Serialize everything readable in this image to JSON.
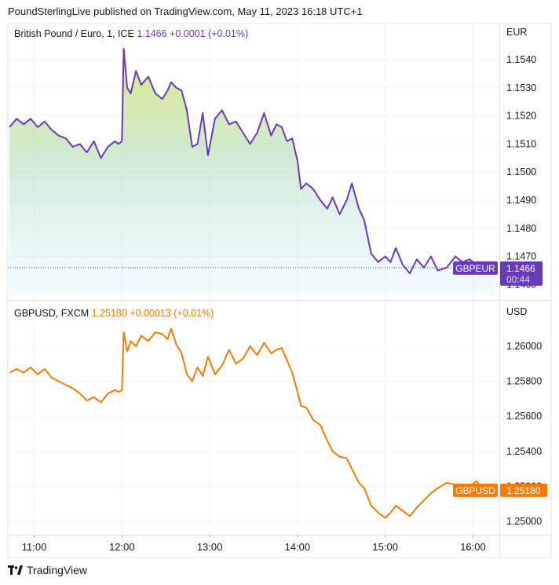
{
  "header": {
    "text": "PoundSterlingLive published on TradingView.com, May 11, 2023 16:18 UTC+1"
  },
  "footer": {
    "brand": "TradingView"
  },
  "colors": {
    "eur_line": "#673ab7",
    "usd_line": "#f57c00",
    "grid": "#f0f3fa",
    "border": "#e0e3eb",
    "text": "#131722"
  },
  "chart_data": [
    {
      "type": "area",
      "symbol": "British Pound / Euro, 1, ICE",
      "last": "1.1466",
      "change": "+0.0001 (+0.01%)",
      "currency": "EUR",
      "price_label": "GBPEUR",
      "price_value": "1.1466",
      "countdown": "00:44",
      "ylim": [
        1.146,
        1.155
      ],
      "yticks": [
        "1.1540",
        "1.1530",
        "1.1520",
        "1.1510",
        "1.1500",
        "1.1490",
        "1.1480",
        "1.1470",
        "1.1460"
      ],
      "xlim": [
        10.7,
        16.3
      ],
      "series": [
        {
          "x": [
            10.72,
            10.8,
            10.88,
            10.96,
            11.04,
            11.12,
            11.2,
            11.28,
            11.36,
            11.44,
            11.52,
            11.6,
            11.68,
            11.76,
            11.84,
            11.92,
            11.96,
            12.0,
            12.02,
            12.06,
            12.1,
            12.16,
            12.22,
            12.3,
            12.38,
            12.46,
            12.52,
            12.56,
            12.62,
            12.68,
            12.74,
            12.8,
            12.86,
            12.92,
            12.98,
            13.06,
            13.14,
            13.22,
            13.3,
            13.38,
            13.46,
            13.54,
            13.62,
            13.7,
            13.76,
            13.82,
            13.88,
            13.94,
            14.0,
            14.04,
            14.1,
            14.18,
            14.26,
            14.34,
            14.4,
            14.48,
            14.56,
            14.62,
            14.7,
            14.76,
            14.84,
            14.92,
            15.0,
            15.06,
            15.12,
            15.2,
            15.28,
            15.36,
            15.44,
            15.52,
            15.6,
            15.7,
            15.8,
            15.88,
            15.96,
            16.04,
            16.12,
            16.2,
            16.25
          ],
          "y": [
            1.1516,
            1.1519,
            1.1517,
            1.1519,
            1.1516,
            1.1518,
            1.1515,
            1.1513,
            1.1512,
            1.1509,
            1.151,
            1.1507,
            1.1511,
            1.1505,
            1.1509,
            1.1511,
            1.151,
            1.1511,
            1.1544,
            1.153,
            1.1528,
            1.1536,
            1.1531,
            1.1534,
            1.1528,
            1.1526,
            1.1529,
            1.1532,
            1.153,
            1.1529,
            1.1522,
            1.1509,
            1.151,
            1.1521,
            1.1506,
            1.1519,
            1.1522,
            1.1517,
            1.1518,
            1.1514,
            1.151,
            1.1514,
            1.1521,
            1.1513,
            1.1517,
            1.1516,
            1.1511,
            1.1512,
            1.1504,
            1.1494,
            1.1496,
            1.1494,
            1.149,
            1.1487,
            1.1491,
            1.1485,
            1.149,
            1.1496,
            1.1487,
            1.1483,
            1.1471,
            1.1468,
            1.147,
            1.1468,
            1.1473,
            1.1467,
            1.1464,
            1.1469,
            1.1466,
            1.147,
            1.1465,
            1.1466,
            1.147,
            1.1468,
            1.1469,
            1.1467,
            1.1468,
            1.1465,
            1.1466
          ]
        }
      ]
    },
    {
      "type": "line",
      "symbol": "GBPUSD, FXCM",
      "last": "1.25180",
      "change": "+0.00013 (+0.01%)",
      "currency": "USD",
      "price_label": "GBPUSD",
      "price_value": "1.25180",
      "ylim": [
        1.2495,
        1.261
      ],
      "yticks": [
        "1.26000",
        "1.25800",
        "1.25600",
        "1.25400",
        "1.25200",
        "1.25000"
      ],
      "xlim": [
        10.7,
        16.3
      ],
      "xticks": [
        "11:00",
        "12:00",
        "13:00",
        "14:00",
        "15:00",
        "16:00"
      ],
      "xtick_values": [
        11,
        12,
        13,
        14,
        15,
        16
      ],
      "series": [
        {
          "x": [
            10.72,
            10.8,
            10.88,
            10.96,
            11.04,
            11.12,
            11.2,
            11.28,
            11.36,
            11.44,
            11.52,
            11.6,
            11.68,
            11.76,
            11.84,
            11.92,
            11.96,
            12.0,
            12.02,
            12.06,
            12.1,
            12.16,
            12.22,
            12.3,
            12.38,
            12.46,
            12.52,
            12.56,
            12.62,
            12.68,
            12.74,
            12.8,
            12.86,
            12.92,
            12.98,
            13.06,
            13.14,
            13.22,
            13.3,
            13.38,
            13.46,
            13.54,
            13.62,
            13.7,
            13.76,
            13.82,
            13.88,
            13.94,
            14.0,
            14.04,
            14.1,
            14.18,
            14.26,
            14.34,
            14.4,
            14.48,
            14.56,
            14.62,
            14.7,
            14.76,
            14.84,
            14.92,
            15.0,
            15.06,
            15.12,
            15.2,
            15.28,
            15.36,
            15.44,
            15.52,
            15.6,
            15.7,
            15.8,
            15.88,
            15.96,
            16.04,
            16.12,
            16.2,
            16.25
          ],
          "y": [
            1.2585,
            1.2587,
            1.2585,
            1.2588,
            1.2584,
            1.2587,
            1.2582,
            1.258,
            1.2578,
            1.2576,
            1.2573,
            1.2569,
            1.2571,
            1.2568,
            1.2573,
            1.2575,
            1.2574,
            1.2575,
            1.2608,
            1.2597,
            1.2603,
            1.26,
            1.2606,
            1.2603,
            1.2608,
            1.2607,
            1.2604,
            1.261,
            1.2601,
            1.2596,
            1.2584,
            1.258,
            1.2588,
            1.2583,
            1.2594,
            1.2584,
            1.2589,
            1.2598,
            1.259,
            1.2593,
            1.26,
            1.2595,
            1.2602,
            1.2596,
            1.2598,
            1.2599,
            1.2592,
            1.2585,
            1.2574,
            1.2566,
            1.2565,
            1.2558,
            1.2555,
            1.2546,
            1.254,
            1.2537,
            1.2536,
            1.253,
            1.2522,
            1.2519,
            1.2509,
            1.2505,
            1.2502,
            1.2505,
            1.2509,
            1.2506,
            1.2503,
            1.2508,
            1.2512,
            1.2516,
            1.2519,
            1.2522,
            1.2521,
            1.2519,
            1.252,
            1.2523,
            1.2518,
            1.2517,
            1.2518
          ]
        }
      ]
    }
  ]
}
